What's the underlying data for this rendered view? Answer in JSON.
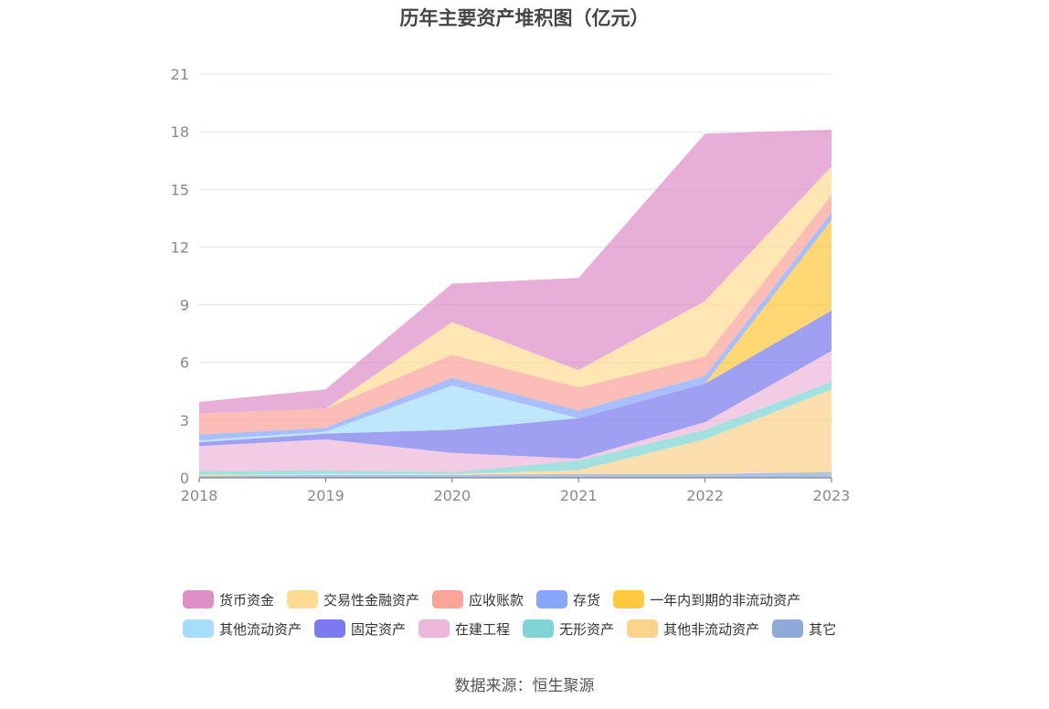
{
  "source_text": "数据来源：恒生聚源",
  "chart_data": {
    "type": "area",
    "title": "历年主要资产堆积图（亿元）",
    "x": [
      "2018",
      "2019",
      "2020",
      "2021",
      "2022",
      "2023"
    ],
    "ylim": [
      0,
      21
    ],
    "yticks": [
      "0",
      "3",
      "6",
      "9",
      "12",
      "15",
      "18",
      "21"
    ],
    "grid": true,
    "legend_position": "bottom",
    "series": [
      {
        "name": "其它",
        "color": "#8eaadb",
        "values": [
          0.1,
          0.15,
          0.15,
          0.2,
          0.2,
          0.3
        ]
      },
      {
        "name": "其他非流动资产",
        "color": "#fcd38d",
        "values": [
          0.05,
          0.05,
          0.05,
          0.2,
          1.8,
          4.3
        ]
      },
      {
        "name": "无形资产",
        "color": "#7fd5d6",
        "values": [
          0.2,
          0.2,
          0.1,
          0.5,
          0.5,
          0.4
        ]
      },
      {
        "name": "在建工程",
        "color": "#ebb8d9",
        "values": [
          1.3,
          1.6,
          1.0,
          0.1,
          0.4,
          1.6
        ]
      },
      {
        "name": "固定资产",
        "color": "#7b7bef",
        "values": [
          0.2,
          0.3,
          1.2,
          2.1,
          2.0,
          2.1
        ]
      },
      {
        "name": "其他流动资产",
        "color": "#a6defa",
        "values": [
          0.1,
          0.1,
          2.3,
          0.0,
          0.0,
          0.0
        ]
      },
      {
        "name": "一年内到期的非流动资产",
        "color": "#ffc83d",
        "values": [
          0.0,
          0.0,
          0.0,
          0.0,
          0.0,
          4.7
        ]
      },
      {
        "name": "存货",
        "color": "#86a6fa",
        "values": [
          0.3,
          0.2,
          0.4,
          0.4,
          0.4,
          0.4
        ]
      },
      {
        "name": "应收账款",
        "color": "#fba49a",
        "values": [
          1.1,
          1.0,
          1.2,
          1.2,
          1.0,
          0.9
        ]
      },
      {
        "name": "交易性金融资产",
        "color": "#ffdc94",
        "values": [
          0.0,
          0.0,
          1.7,
          0.9,
          2.9,
          1.5
        ]
      },
      {
        "name": "货币资金",
        "color": "#de8fc7",
        "values": [
          0.6,
          1.0,
          2.0,
          4.8,
          8.7,
          1.9
        ]
      }
    ]
  },
  "legend_rows": [
    [
      {
        "name": "货币资金",
        "color": "#de8fc7"
      },
      {
        "name": "交易性金融资产",
        "color": "#ffdc94"
      },
      {
        "name": "应收账款",
        "color": "#fba49a"
      },
      {
        "name": "存货",
        "color": "#86a6fa"
      },
      {
        "name": "一年内到期的非流动资产",
        "color": "#ffc83d"
      }
    ],
    [
      {
        "name": "其他流动资产",
        "color": "#a6defa"
      },
      {
        "name": "固定资产",
        "color": "#7b7bef"
      },
      {
        "name": "在建工程",
        "color": "#ebb8d9"
      },
      {
        "name": "无形资产",
        "color": "#7fd5d6"
      },
      {
        "name": "其他非流动资产",
        "color": "#fcd38d"
      },
      {
        "name": "其它",
        "color": "#8eaadb"
      }
    ]
  ]
}
